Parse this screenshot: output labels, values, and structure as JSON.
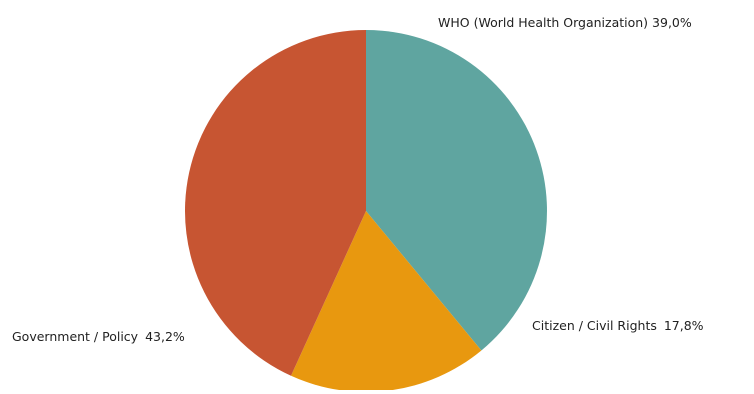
{
  "chart_data": {
    "type": "pie",
    "title": "",
    "slices": [
      {
        "label": "WHO (World Health Organization)",
        "value": 39.0,
        "value_text": "39,0%",
        "color": "#5fa5a0"
      },
      {
        "label": "Citizen / Civil Rights",
        "value": 17.8,
        "value_text": "17,8%",
        "color": "#e8980f"
      },
      {
        "label": "Government / Policy",
        "value": 43.2,
        "value_text": "43,2%",
        "color": "#c75532"
      }
    ],
    "start_angle_deg": -90,
    "direction": "clockwise",
    "legend": "none",
    "labels": "outside, label followed by percentage"
  }
}
